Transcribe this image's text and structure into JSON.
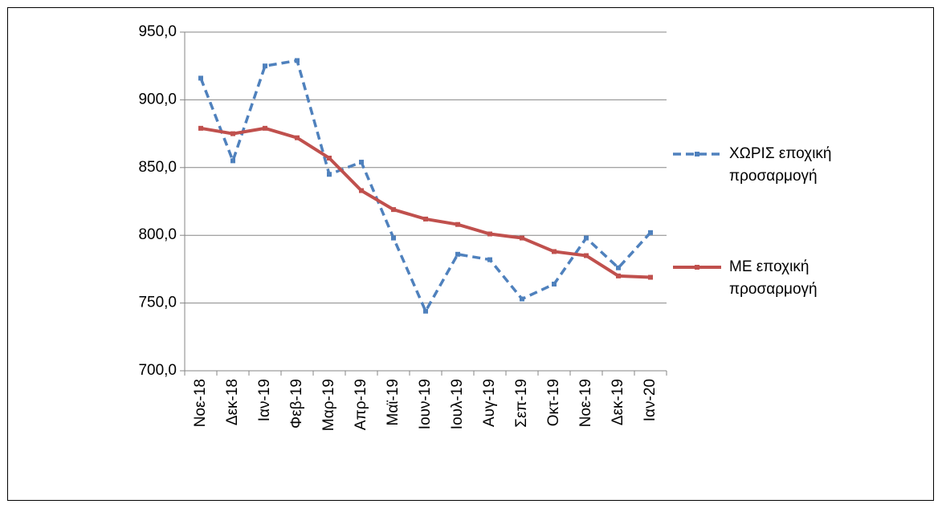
{
  "chart_data": {
    "type": "line",
    "categories": [
      "Νοε-18",
      "Δεκ-18",
      "Ιαν-19",
      "Φεβ-19",
      "Μαρ-19",
      "Απρ-19",
      "Μαϊ-19",
      "Ιουν-19",
      "Ιουλ-19",
      "Αυγ-19",
      "Σεπ-19",
      "Οκτ-19",
      "Νοε-19",
      "Δεκ-19",
      "Ιαν-20"
    ],
    "series": [
      {
        "name": "ΧΩΡΙΣ εποχική προσαρμογή",
        "color": "#4f81bd",
        "dashed": true,
        "values": [
          916,
          855,
          925,
          929,
          845,
          854,
          798,
          744,
          786,
          782,
          753,
          764,
          798,
          776,
          802
        ]
      },
      {
        "name": "ΜΕ εποχική προσαρμογή",
        "color": "#c0504d",
        "dashed": false,
        "values": [
          879,
          875,
          879,
          872,
          857,
          833,
          819,
          812,
          808,
          801,
          798,
          788,
          785,
          770,
          769
        ]
      }
    ],
    "ylim": [
      700,
      950
    ],
    "yticks": [
      {
        "value": 700,
        "label": "700,0"
      },
      {
        "value": 750,
        "label": "750,0"
      },
      {
        "value": 800,
        "label": "800,0"
      },
      {
        "value": 850,
        "label": "850,0"
      },
      {
        "value": 900,
        "label": "900,0"
      },
      {
        "value": 950,
        "label": "950,0"
      }
    ],
    "grid": true,
    "legend": "right"
  }
}
